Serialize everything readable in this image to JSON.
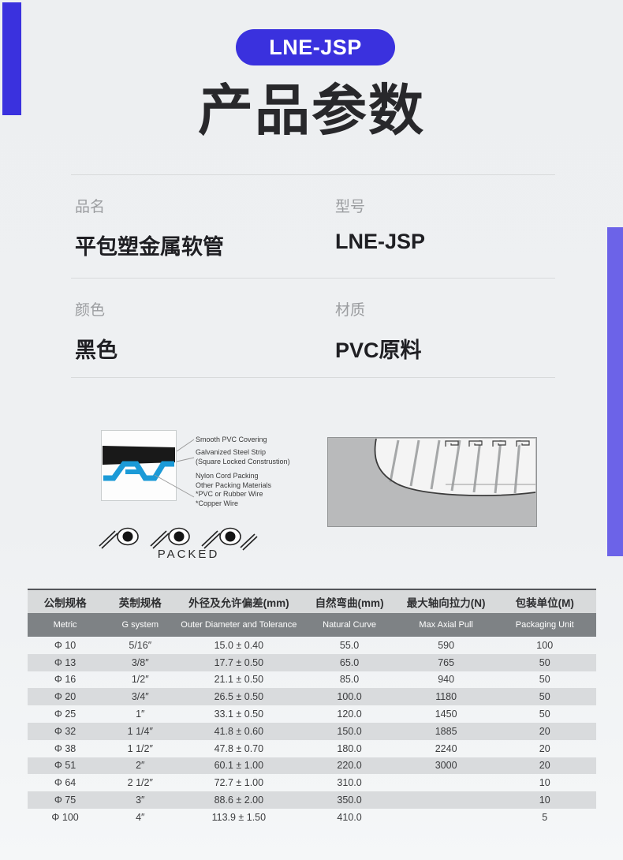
{
  "header": {
    "badge": "LNE-JSP",
    "title": "产品参数"
  },
  "info": {
    "fields": [
      {
        "label": "品名",
        "value": "平包塑金属软管"
      },
      {
        "label": "型号",
        "value": "LNE-JSP"
      },
      {
        "label": "颜色",
        "value": "黑色"
      },
      {
        "label": "材质",
        "value": "PVC原料"
      }
    ]
  },
  "diagram": {
    "callout_lines": [
      "Smooth PVC Covering",
      "Galvanized Steel Strip",
      "(Square Locked Construstion)",
      "Nylon Cord Packing",
      "Other Packing Materials",
      "*PVC or Rubber Wire",
      "*Copper Wire"
    ],
    "packed_label": "PACKED"
  },
  "table": {
    "columns": [
      {
        "zh": "公制规格",
        "en": "Metric"
      },
      {
        "zh": "英制规格",
        "en": "G system"
      },
      {
        "zh": "外径及允许偏差(mm)",
        "en": "Outer Diameter and Tolerance"
      },
      {
        "zh": "自然弯曲(mm)",
        "en": "Natural Curve"
      },
      {
        "zh": "最大轴向拉力(N)",
        "en": "Max Axial Pull"
      },
      {
        "zh": "包装单位(M)",
        "en": "Packaging Unit"
      }
    ],
    "rows": [
      [
        "Φ 10",
        "5/16″",
        "15.0 ± 0.40",
        "55.0",
        "590",
        "100"
      ],
      [
        "Φ 13",
        "3/8″",
        "17.7 ± 0.50",
        "65.0",
        "765",
        "50"
      ],
      [
        "Φ 16",
        "1/2″",
        "21.1 ± 0.50",
        "85.0",
        "940",
        "50"
      ],
      [
        "Φ 20",
        "3/4″",
        "26.5 ± 0.50",
        "100.0",
        "1180",
        "50"
      ],
      [
        "Φ 25",
        "1″",
        "33.1 ± 0.50",
        "120.0",
        "1450",
        "50"
      ],
      [
        "Φ 32",
        "1 1/4″",
        "41.8 ± 0.60",
        "150.0",
        "1885",
        "20"
      ],
      [
        "Φ 38",
        "1 1/2″",
        "47.8 ± 0.70",
        "180.0",
        "2240",
        "20"
      ],
      [
        "Φ 51",
        "2″",
        "60.1 ± 1.00",
        "220.0",
        "3000",
        "20"
      ],
      [
        "Φ 64",
        "2 1/2″",
        "72.7 ± 1.00",
        "310.0",
        "",
        "10"
      ],
      [
        "Φ 75",
        "3″",
        "88.6 ± 2.00",
        "350.0",
        "",
        "10"
      ],
      [
        "Φ 100",
        "4″",
        "113.9 ± 1.50",
        "410.0",
        "",
        "5"
      ]
    ]
  },
  "colors": {
    "accent_blue": "#3a31de",
    "accent_purple": "#6c63e8",
    "diagram_blue": "#1b9ad7",
    "header_row_light": "#d8dadb",
    "header_row_dark": "#7e8285",
    "row_stripe": "#d9dbdd"
  }
}
